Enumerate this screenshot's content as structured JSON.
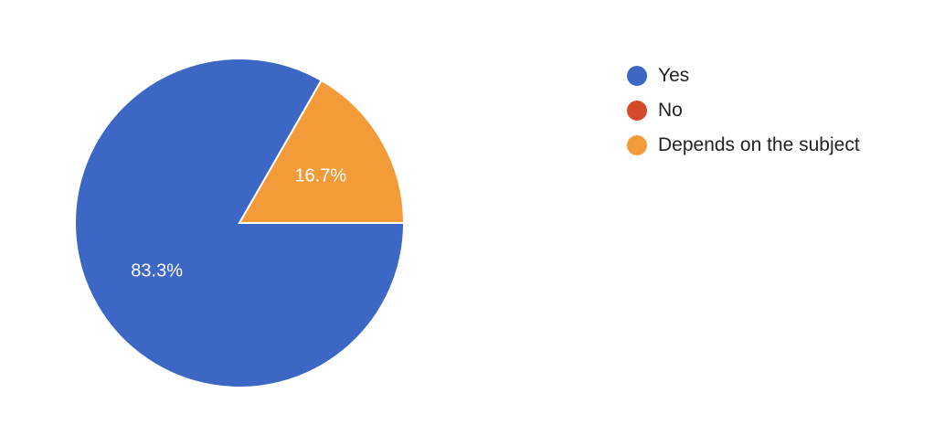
{
  "chart_data": {
    "type": "pie",
    "slices": [
      {
        "label": "Yes",
        "value": 83.3,
        "color": "#3d67c5",
        "data_label": "83.3%"
      },
      {
        "label": "No",
        "value": 0,
        "color": "#d34b2a",
        "data_label": ""
      },
      {
        "label": "Depends on the subject",
        "value": 16.7,
        "color": "#f29b38",
        "data_label": "16.7%"
      }
    ],
    "legend_position": "right"
  }
}
